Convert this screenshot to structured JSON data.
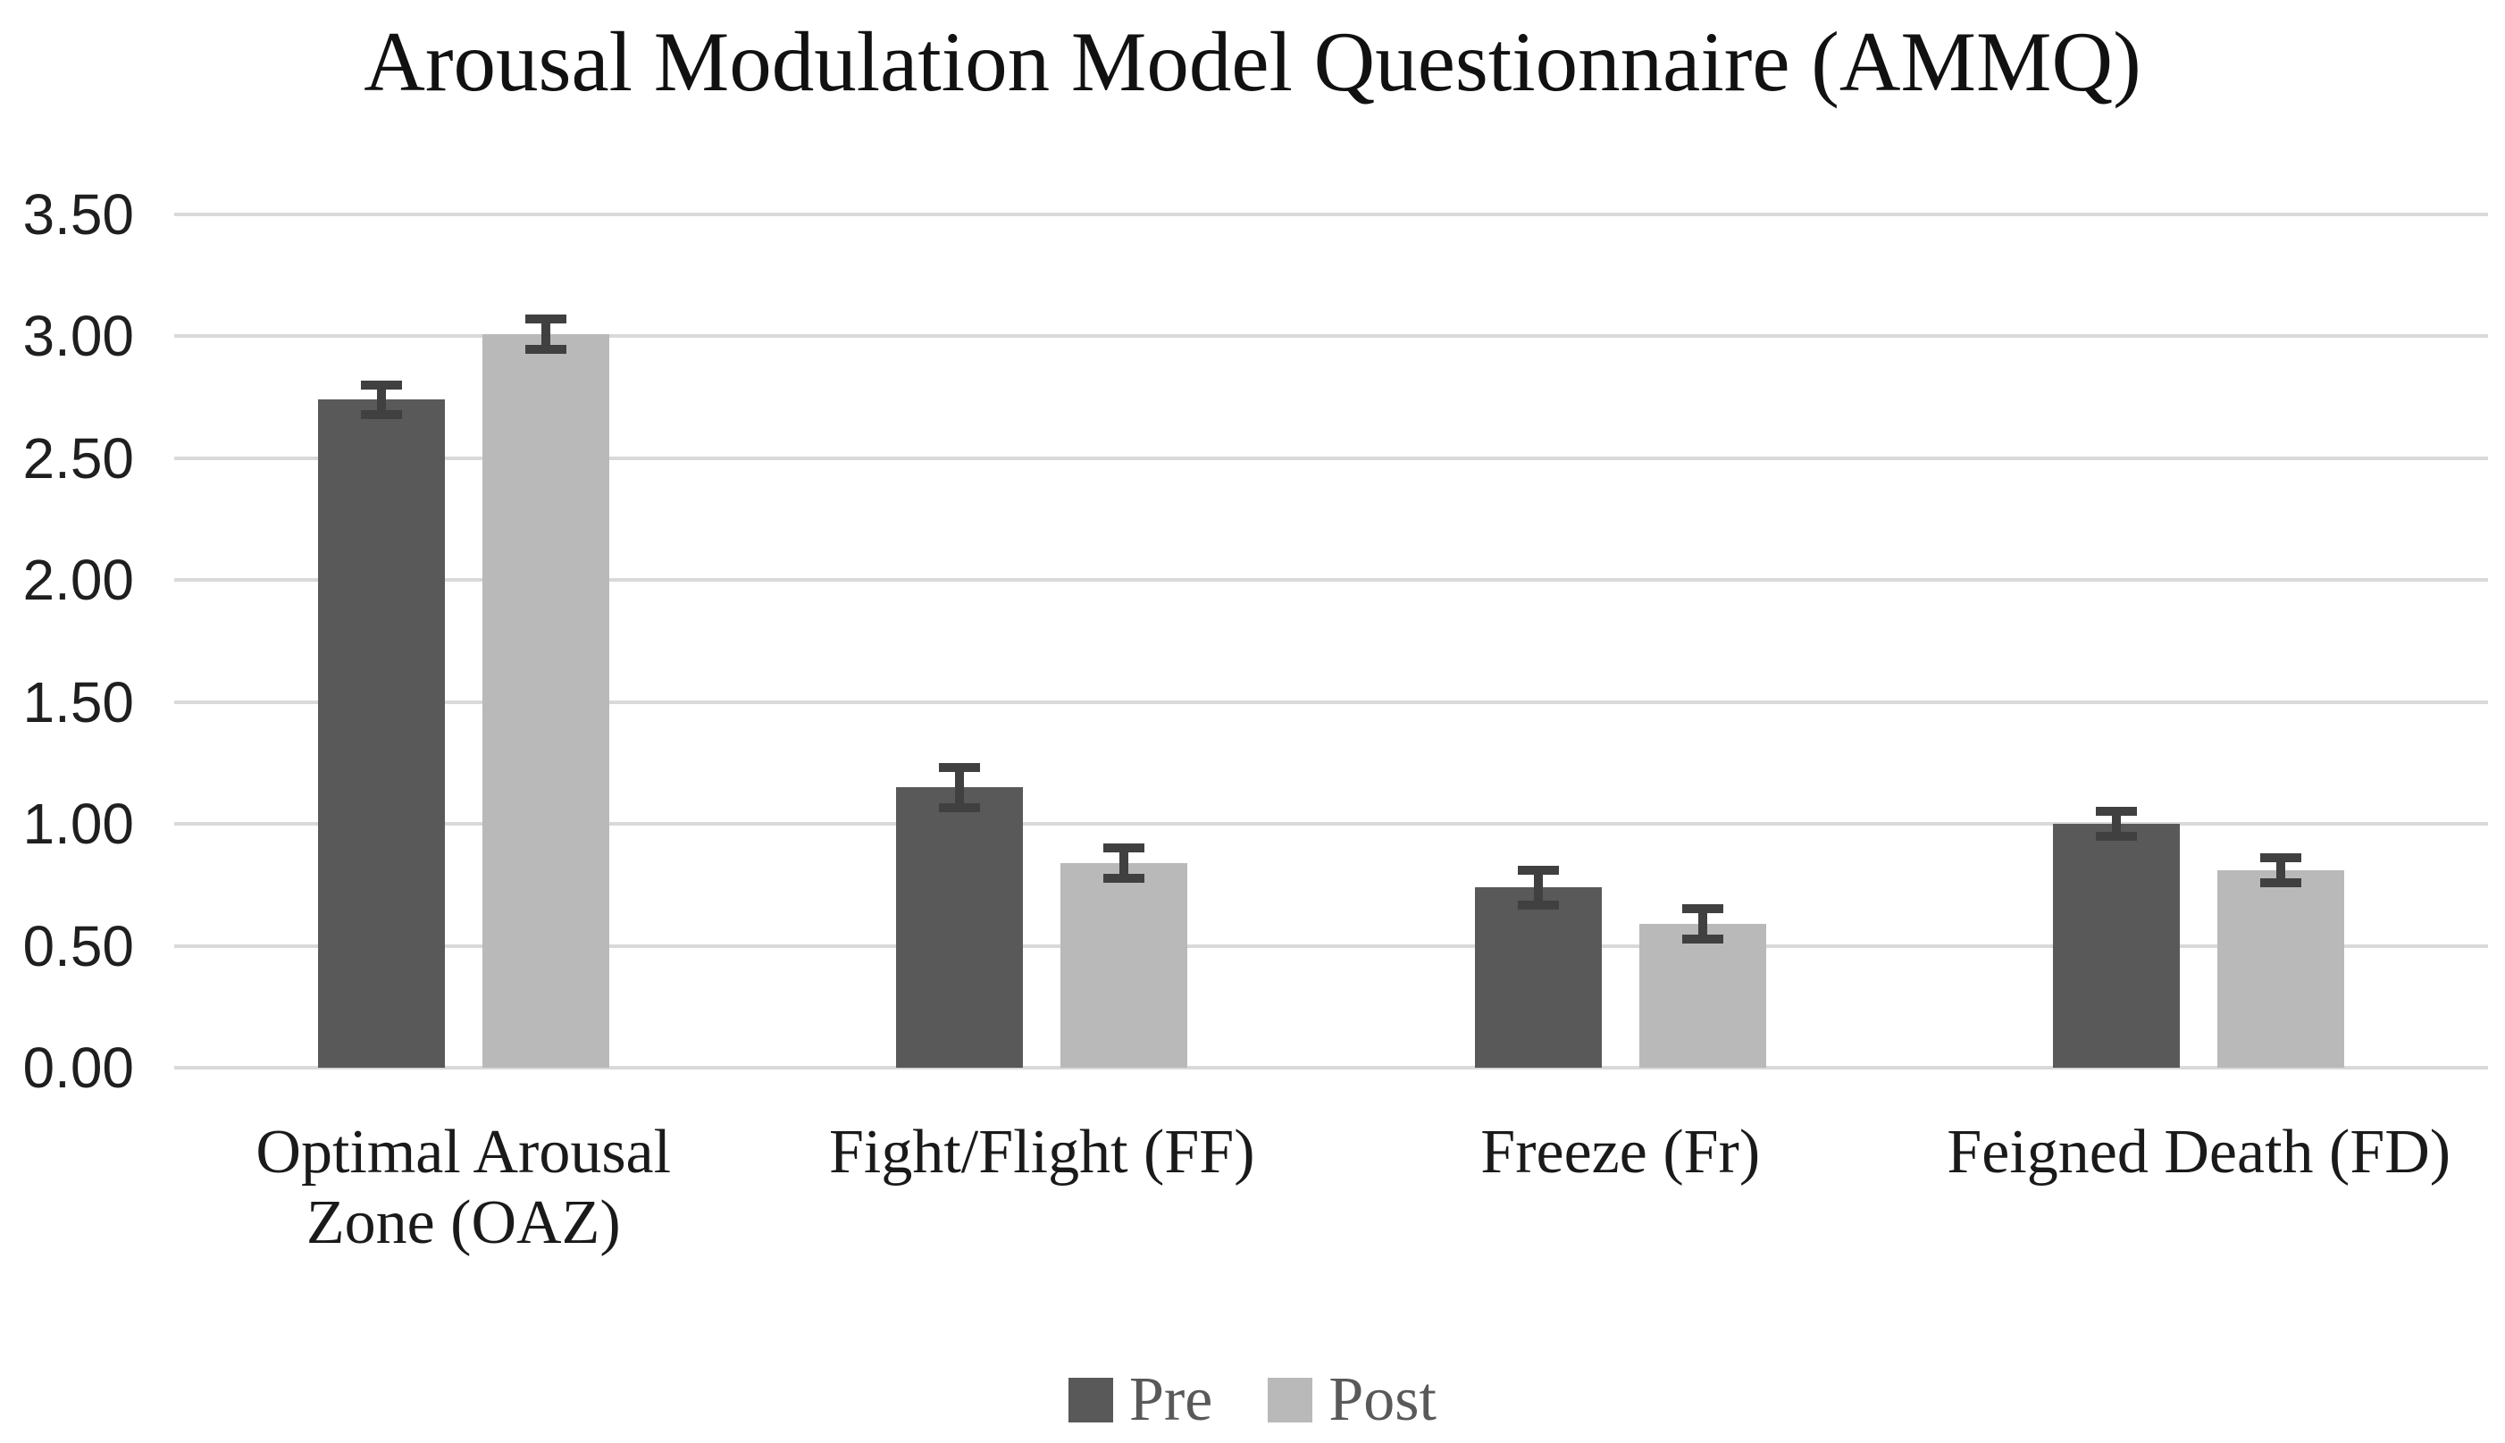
{
  "title": "Arousal Modulation Model Questionnaire (AMMQ)",
  "chart_data": {
    "type": "bar",
    "title": "Arousal Modulation Model Questionnaire (AMMQ)",
    "categories": [
      "Optimal Arousal Zone (OAZ)",
      "Fight/Flight (FF)",
      "Freeze (Fr)",
      "Feigned Death (FD)"
    ],
    "category_display_lines": [
      [
        "Optimal Arousal",
        "Zone (OAZ)"
      ],
      [
        "Fight/Flight (FF)"
      ],
      [
        "Freeze (Fr)"
      ],
      [
        "Feigned Death (FD)"
      ]
    ],
    "series": [
      {
        "name": "Pre",
        "color": "#595959",
        "values": [
          2.74,
          1.15,
          0.74,
          1.0
        ],
        "errors": [
          0.08,
          0.1,
          0.09,
          0.07
        ]
      },
      {
        "name": "Post",
        "color": "#b9b9b9",
        "values": [
          3.01,
          0.84,
          0.59,
          0.81
        ],
        "errors": [
          0.08,
          0.08,
          0.08,
          0.07
        ]
      }
    ],
    "error_bars": true,
    "error_bar_color": "#404040",
    "xlabel": "",
    "ylabel": "",
    "ylim": [
      0,
      3.5
    ],
    "ytick_step": 0.5,
    "yticks": [
      "0.00",
      "0.50",
      "1.00",
      "1.50",
      "2.00",
      "2.50",
      "3.00",
      "3.50"
    ],
    "grid": true,
    "gridline_color": "#d9d9d9",
    "legend_position": "bottom",
    "background_color": "#ffffff"
  }
}
